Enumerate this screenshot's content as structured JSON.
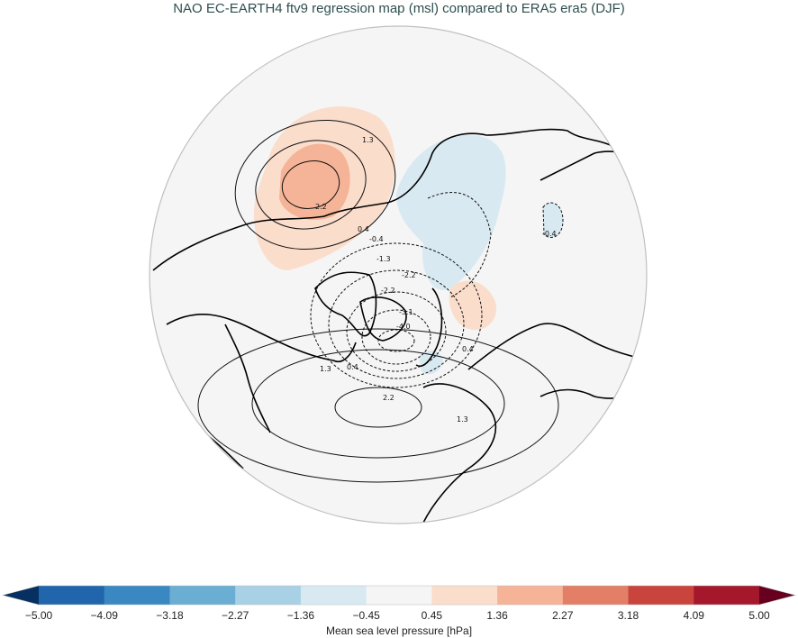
{
  "header": {
    "title": "NAO EC-EARTH4 ftv9 regression map (msl) compared to ERA5 era5 (DJF)"
  },
  "colorbar": {
    "label": "Mean sea level pressure [hPa]",
    "ticks": [
      "−5.00",
      "−4.09",
      "−3.18",
      "−2.27",
      "−1.36",
      "−0.45",
      "0.45",
      "1.36",
      "2.27",
      "3.18",
      "4.09",
      "5.00"
    ],
    "colors": [
      "#053061",
      "#2166ac",
      "#3a88c2",
      "#6aaed3",
      "#a9d1e6",
      "#d8e9f2",
      "#f5f5f5",
      "#fbddcc",
      "#f5b497",
      "#e27f66",
      "#c9443d",
      "#a5182b",
      "#67001f"
    ],
    "extend": "both"
  },
  "chart_data": {
    "type": "heatmap",
    "title": "NAO EC-EARTH4 ftv9 regression map (msl) compared to ERA5 era5 (DJF)",
    "projection": "North polar stereographic (Northern Hemisphere)",
    "variable": "Mean sea level pressure regression onto NAO index",
    "units": "hPa",
    "colorbar_levels": [
      -5.0,
      -4.09,
      -3.18,
      -2.27,
      -1.36,
      -0.45,
      0.45,
      1.36,
      2.27,
      3.18,
      4.09,
      5.0
    ],
    "colorbar_label": "Mean sea level pressure [hPa]",
    "filled_field": "model minus reference difference (shaded)",
    "contour_field": "reference regression (ERA5) contours",
    "contour_labels_visible": [
      "-4.0",
      "-3.1",
      "-3.1",
      "-2.2",
      "-2.2",
      "-1.3",
      "-0.4",
      "-0.4",
      "0.4",
      "0.4",
      "0.4",
      "1.3",
      "1.3",
      "1.3",
      "2.2",
      "2.2"
    ],
    "features": [
      {
        "region": "North Pacific / Aleutian",
        "shading": "positive",
        "max_approx": 2.5,
        "contours": [
          "0.4",
          "1.3",
          "2.2"
        ]
      },
      {
        "region": "Siberia / Central Asia",
        "shading": "negative",
        "min_approx": -1.0
      },
      {
        "region": "Scandinavia / Barents",
        "shading": "positive",
        "max_approx": 1.0
      },
      {
        "region": "Iceland low center",
        "contour_min": -4.0
      },
      {
        "region": "Azores high center",
        "contour_max": 2.2
      },
      {
        "region": "East Asia (Mongolia)",
        "shading": "negative",
        "contour": "-0.4"
      }
    ],
    "grid": false,
    "legend_position": "bottom (horizontal colorbar)"
  }
}
